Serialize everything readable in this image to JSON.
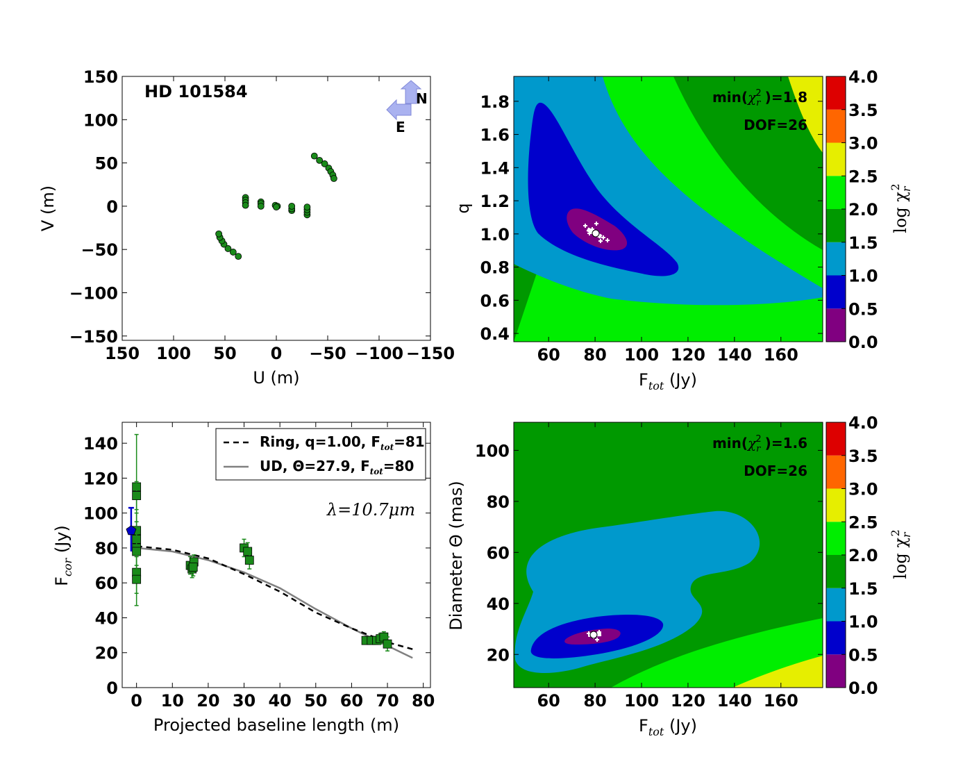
{
  "chart_data": [
    {
      "type": "scatter",
      "panel": "uv-coverage",
      "title": "HD 101584",
      "xlabel": "U (m)",
      "ylabel": "V (m)",
      "xlim": [
        150,
        -150
      ],
      "ylim": [
        -155,
        150
      ],
      "xticks": [
        "150",
        "100",
        "50",
        "0",
        "−50",
        "−100",
        "−150"
      ],
      "yticks": [
        "150",
        "100",
        "50",
        "0",
        "−50",
        "−100",
        "−150"
      ],
      "compass": {
        "north": "N",
        "east": "E"
      },
      "color": "#1a8a1a",
      "points": [
        [
          -37,
          58
        ],
        [
          -42,
          53
        ],
        [
          -47,
          49
        ],
        [
          -51,
          44
        ],
        [
          -53,
          40
        ],
        [
          -55,
          36
        ],
        [
          -56,
          32
        ],
        [
          37,
          -58
        ],
        [
          42,
          -53
        ],
        [
          47,
          -49
        ],
        [
          51,
          -44
        ],
        [
          53,
          -40
        ],
        [
          55,
          -36
        ],
        [
          56,
          -32
        ],
        [
          30,
          10
        ],
        [
          30,
          7
        ],
        [
          30,
          4
        ],
        [
          30,
          1
        ],
        [
          -30,
          -10
        ],
        [
          -30,
          -7
        ],
        [
          -30,
          -4
        ],
        [
          -30,
          -1
        ],
        [
          15,
          5
        ],
        [
          15,
          3
        ],
        [
          15,
          0
        ],
        [
          -15,
          -5
        ],
        [
          -15,
          -3
        ],
        [
          -15,
          0
        ],
        [
          1,
          1
        ],
        [
          -1,
          0
        ],
        [
          0,
          -1
        ]
      ]
    },
    {
      "type": "heatmap",
      "panel": "chi2-ring",
      "xlabel": "F",
      "xlabel_sub": "tot",
      "xlabel_unit": " (Jy)",
      "ylabel": "q",
      "xlim": [
        45,
        178
      ],
      "ylim": [
        0.35,
        1.95
      ],
      "xticks": [
        "60",
        "80",
        "100",
        "120",
        "140",
        "160"
      ],
      "yticks": [
        "0.4",
        "0.6",
        "0.8",
        "1.0",
        "1.2",
        "1.4",
        "1.6",
        "1.8"
      ],
      "annotation_min_prefix": "min(",
      "annotation_min_chi": "χ",
      "annotation_min_sub": "r",
      "annotation_min_sup": "2",
      "annotation_min_suffix": ")=1.8",
      "annotation_dof": "DOF=26",
      "best_fit": [
        81,
        1.0
      ]
    },
    {
      "type": "scatter",
      "panel": "correlated-flux",
      "xlabel": "Projected baseline length (m)",
      "ylabel": "F",
      "ylabel_sub": "cor",
      "ylabel_unit": " (Jy)",
      "xlim": [
        -4,
        82
      ],
      "ylim": [
        0,
        152
      ],
      "xticks": [
        "0",
        "10",
        "20",
        "30",
        "40",
        "50",
        "60",
        "70",
        "80"
      ],
      "yticks": [
        "0",
        "20",
        "40",
        "60",
        "80",
        "100",
        "120",
        "140"
      ],
      "wavelength_label": "λ=10.7μm",
      "legend": [
        {
          "label": "Ring, q=1.00, F",
          "sub": "tot",
          "suffix": "=81",
          "style": "dashed",
          "color": "#000000"
        },
        {
          "label": "UD, Θ=27.9, F",
          "sub": "tot",
          "suffix": "=80",
          "style": "solid",
          "color": "#808080"
        }
      ],
      "measurements": [
        {
          "x": 0,
          "y": 115,
          "err": 30
        },
        {
          "x": 0,
          "y": 110,
          "err": 8
        },
        {
          "x": 0,
          "y": 90,
          "err": 10
        },
        {
          "x": 0,
          "y": 85,
          "err": 10
        },
        {
          "x": 0,
          "y": 80,
          "err": 10
        },
        {
          "x": 0,
          "y": 78,
          "err": 10
        },
        {
          "x": 0,
          "y": 66,
          "err": 12
        },
        {
          "x": 0,
          "y": 62,
          "err": 15
        },
        {
          "x": 15,
          "y": 70,
          "err": 5
        },
        {
          "x": 15.5,
          "y": 68,
          "err": 5
        },
        {
          "x": 16,
          "y": 72,
          "err": 4
        },
        {
          "x": 15.8,
          "y": 69,
          "err": 5
        },
        {
          "x": 30,
          "y": 80,
          "err": 5
        },
        {
          "x": 31,
          "y": 78,
          "err": 5
        },
        {
          "x": 31.5,
          "y": 73,
          "err": 5
        },
        {
          "x": 64,
          "y": 27,
          "err": 2
        },
        {
          "x": 65.5,
          "y": 27,
          "err": 2
        },
        {
          "x": 67,
          "y": 27,
          "err": 2
        },
        {
          "x": 68,
          "y": 28,
          "err": 3
        },
        {
          "x": 69,
          "y": 29,
          "err": 3
        },
        {
          "x": 70,
          "y": 25,
          "err": 4
        }
      ],
      "single_dish": {
        "x": -1.5,
        "y": 90,
        "err_low": 12,
        "err_high": 13,
        "color": "#0000cc"
      },
      "model_ring": [
        [
          0,
          81
        ],
        [
          10,
          79
        ],
        [
          20,
          74
        ],
        [
          30,
          65
        ],
        [
          40,
          55
        ],
        [
          50,
          43
        ],
        [
          60,
          34
        ],
        [
          70,
          26
        ],
        [
          77,
          22
        ]
      ],
      "model_ud": [
        [
          0,
          80
        ],
        [
          10,
          78
        ],
        [
          20,
          73
        ],
        [
          30,
          66
        ],
        [
          40,
          57
        ],
        [
          50,
          45
        ],
        [
          60,
          34
        ],
        [
          70,
          24
        ],
        [
          77,
          17
        ]
      ]
    },
    {
      "type": "heatmap",
      "panel": "chi2-ud",
      "xlabel": "F",
      "xlabel_sub": "tot",
      "xlabel_unit": " (Jy)",
      "ylabel": "Diameter Θ (mas)",
      "xlim": [
        45,
        178
      ],
      "ylim": [
        7,
        111
      ],
      "xticks": [
        "60",
        "80",
        "100",
        "120",
        "140",
        "160"
      ],
      "yticks": [
        "20",
        "40",
        "60",
        "80",
        "100"
      ],
      "annotation_min_prefix": "min(",
      "annotation_min_chi": "χ",
      "annotation_min_sub": "r",
      "annotation_min_sup": "2",
      "annotation_min_suffix": ")=1.6",
      "annotation_dof": "DOF=26",
      "best_fit": [
        80,
        27.9
      ]
    }
  ],
  "colorbar": {
    "label_prefix": "log χ",
    "label_sub": "r",
    "label_sup": "2",
    "ticks": [
      "0.0",
      "0.5",
      "1.0",
      "1.5",
      "2.0",
      "2.5",
      "3.0",
      "3.5",
      "4.0"
    ],
    "levels": [
      "#800080",
      "#0000cc",
      "#0099cc",
      "#009900",
      "#00ee00",
      "#e6ee00",
      "#ff6600",
      "#dd0000"
    ]
  }
}
